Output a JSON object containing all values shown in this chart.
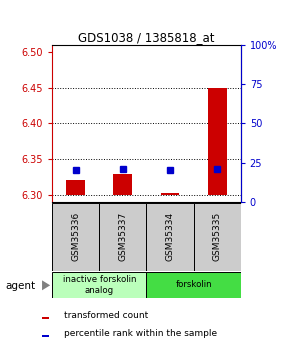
{
  "title": "GDS1038 / 1385818_at",
  "samples": [
    "GSM35336",
    "GSM35337",
    "GSM35334",
    "GSM35335"
  ],
  "red_values": [
    6.321,
    6.329,
    6.302,
    6.449
  ],
  "blue_values": [
    20.0,
    21.0,
    20.0,
    21.0
  ],
  "ylim_left": [
    6.29,
    6.51
  ],
  "ylim_right": [
    0,
    100
  ],
  "yticks_left": [
    6.3,
    6.35,
    6.4,
    6.45,
    6.5
  ],
  "yticks_right": [
    0,
    25,
    50,
    75,
    100
  ],
  "yticklabels_right": [
    "0",
    "25",
    "50",
    "75",
    "100%"
  ],
  "groups": [
    {
      "label": "inactive forskolin\nanalog",
      "samples": [
        0,
        1
      ],
      "color": "#bbffbb"
    },
    {
      "label": "forskolin",
      "samples": [
        2,
        3
      ],
      "color": "#44dd44"
    }
  ],
  "agent_label": "agent",
  "legend_red": "transformed count",
  "legend_blue": "percentile rank within the sample",
  "bar_color": "#cc0000",
  "dot_color": "#0000cc",
  "sample_box_color": "#cccccc",
  "axis_left_color": "#cc0000",
  "axis_right_color": "#0000cc",
  "base_value": 6.3,
  "bar_width": 0.4
}
